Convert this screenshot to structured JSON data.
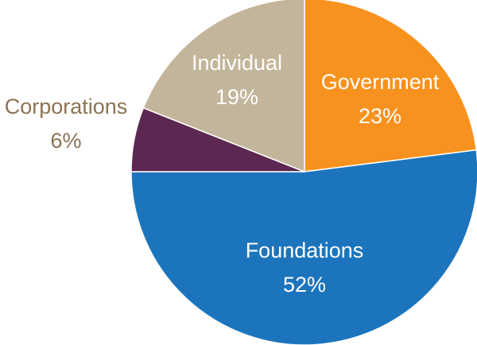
{
  "chart_data": {
    "type": "pie",
    "title": "",
    "slices": [
      {
        "label": "Government",
        "value": 23,
        "display": "23%",
        "color": "#f7921e",
        "label_color": "#ffffff"
      },
      {
        "label": "Foundations",
        "value": 52,
        "display": "52%",
        "color": "#1c75bc",
        "label_color": "#ffffff"
      },
      {
        "label": "Corporations",
        "value": 6,
        "display": "6%",
        "color": "#5c2751",
        "label_color": "#8b7353"
      },
      {
        "label": "Individual",
        "value": 19,
        "display": "19%",
        "color": "#c3b59b",
        "label_color": "#ffffff"
      }
    ],
    "start_angle_deg": 0,
    "direction": "clockwise",
    "legend": "none"
  }
}
